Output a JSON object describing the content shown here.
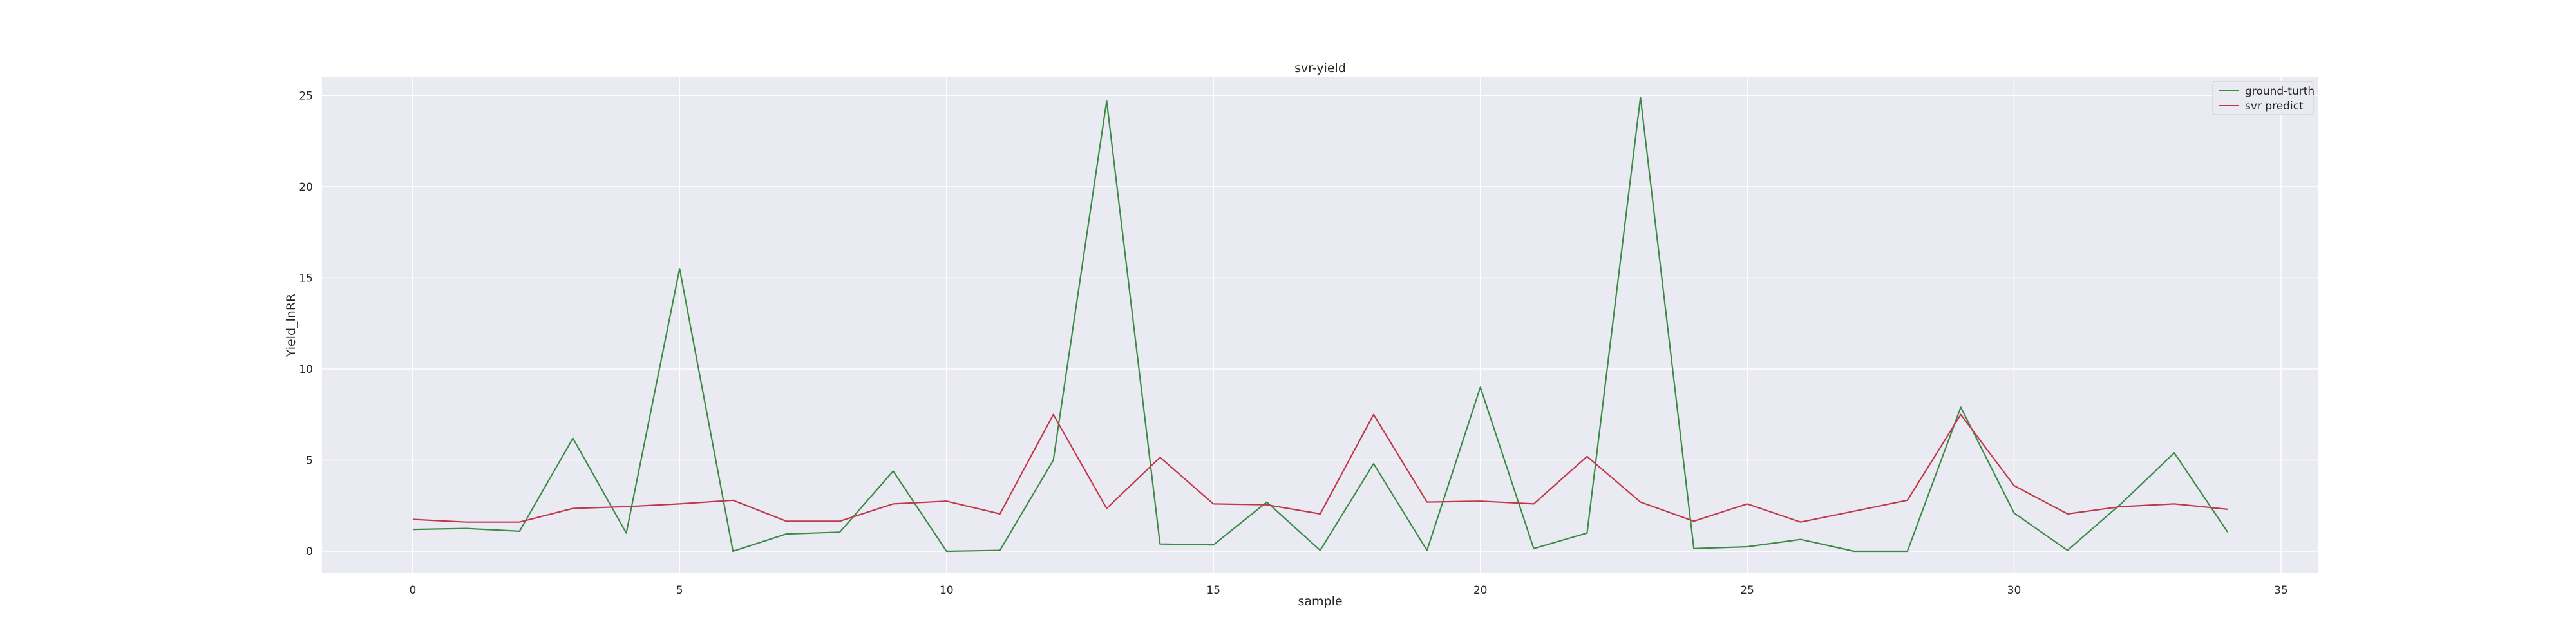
{
  "chart_data": {
    "type": "line",
    "title": "svr-yield",
    "xlabel": "sample",
    "ylabel": "Yield_lnRR",
    "xlim": [
      -1.7,
      35.7
    ],
    "ylim": [
      -1.2,
      26.0
    ],
    "xticks": [
      0,
      5,
      10,
      15,
      20,
      25,
      30,
      35
    ],
    "yticks": [
      0,
      5,
      10,
      15,
      20,
      25
    ],
    "grid": true,
    "legend_position": "top-right",
    "x": [
      0,
      1,
      2,
      3,
      4,
      5,
      6,
      7,
      8,
      9,
      10,
      11,
      12,
      13,
      14,
      15,
      16,
      17,
      18,
      19,
      20,
      21,
      22,
      23,
      24,
      25,
      26,
      27,
      28,
      29,
      30,
      31,
      32,
      33,
      34
    ],
    "series": [
      {
        "name": "ground-turth",
        "color": "#3a8c45",
        "values": [
          1.2,
          1.25,
          1.1,
          6.2,
          1.0,
          15.5,
          0.0,
          0.95,
          1.05,
          4.4,
          0.0,
          0.05,
          5.0,
          24.7,
          0.4,
          0.35,
          2.7,
          0.05,
          4.8,
          0.05,
          9.0,
          0.15,
          1.0,
          24.9,
          0.15,
          0.25,
          0.65,
          0.0,
          0.0,
          7.9,
          2.1,
          0.05,
          2.6,
          5.4,
          1.05
        ]
      },
      {
        "name": "svr predict",
        "color": "#c0394b",
        "values": [
          1.75,
          1.6,
          1.6,
          2.35,
          2.45,
          2.6,
          2.8,
          1.65,
          1.65,
          2.6,
          2.75,
          2.05,
          7.5,
          2.35,
          5.15,
          2.6,
          2.55,
          2.05,
          7.5,
          2.7,
          2.75,
          2.6,
          5.2,
          2.7,
          1.65,
          2.6,
          1.6,
          2.2,
          2.8,
          7.5,
          3.6,
          2.05,
          2.45,
          2.6,
          2.3
        ]
      }
    ]
  }
}
